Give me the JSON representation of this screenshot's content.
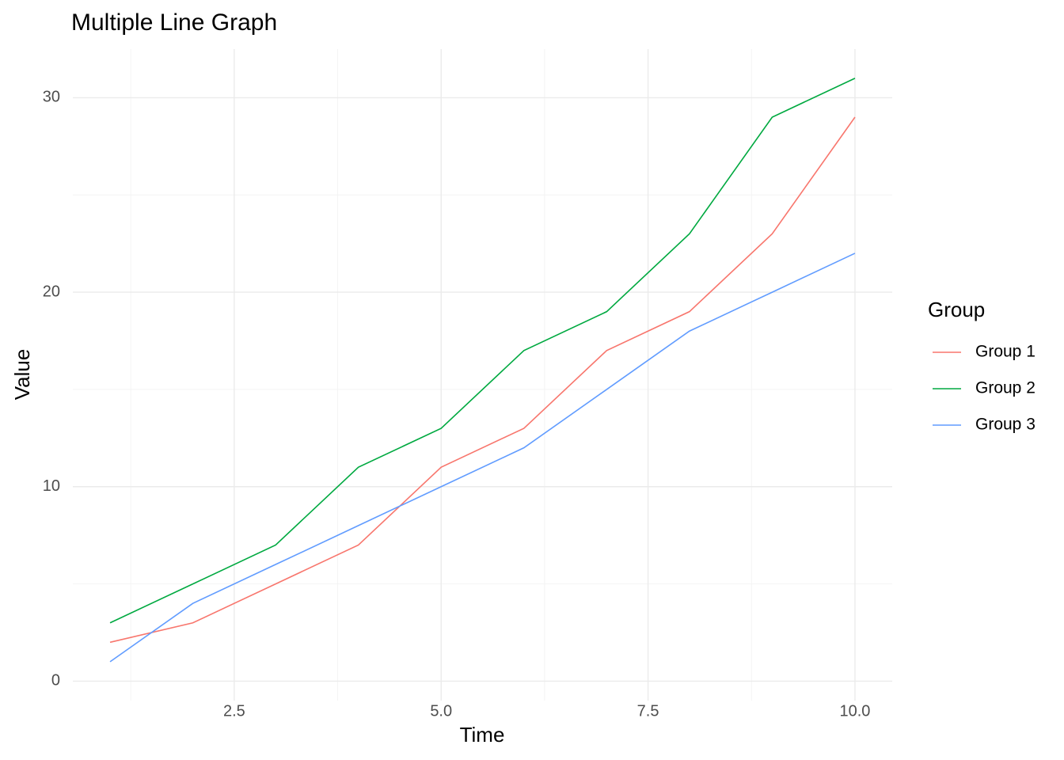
{
  "chart_data": {
    "type": "line",
    "title": "Multiple Line Graph",
    "x_label": "Time",
    "y_label": "Value",
    "legend_title": "Group",
    "legend": "right",
    "grid": true,
    "x": [
      1,
      2,
      3,
      4,
      5,
      6,
      7,
      8,
      9,
      10
    ],
    "series": [
      {
        "name": "Group 1",
        "color": "#F8766D",
        "values": [
          2,
          3,
          5,
          7,
          11,
          13,
          17,
          19,
          23,
          29
        ]
      },
      {
        "name": "Group 2",
        "color": "#00A940",
        "values": [
          3,
          5,
          7,
          11,
          13,
          17,
          19,
          23,
          29,
          31
        ]
      },
      {
        "name": "Group 3",
        "color": "#619CFF",
        "values": [
          1,
          4,
          6,
          8,
          10,
          12,
          15,
          18,
          20,
          22
        ]
      }
    ],
    "xlim": [
      0.55,
      10.45
    ],
    "xticks": [
      2.5,
      {
        "value": 5,
        "label": "5.0"
      },
      7.5,
      {
        "value": 10,
        "label": "10.0"
      }
    ],
    "ylim": [
      -1,
      32.5
    ],
    "yticks": [
      0,
      10,
      20,
      30
    ]
  }
}
